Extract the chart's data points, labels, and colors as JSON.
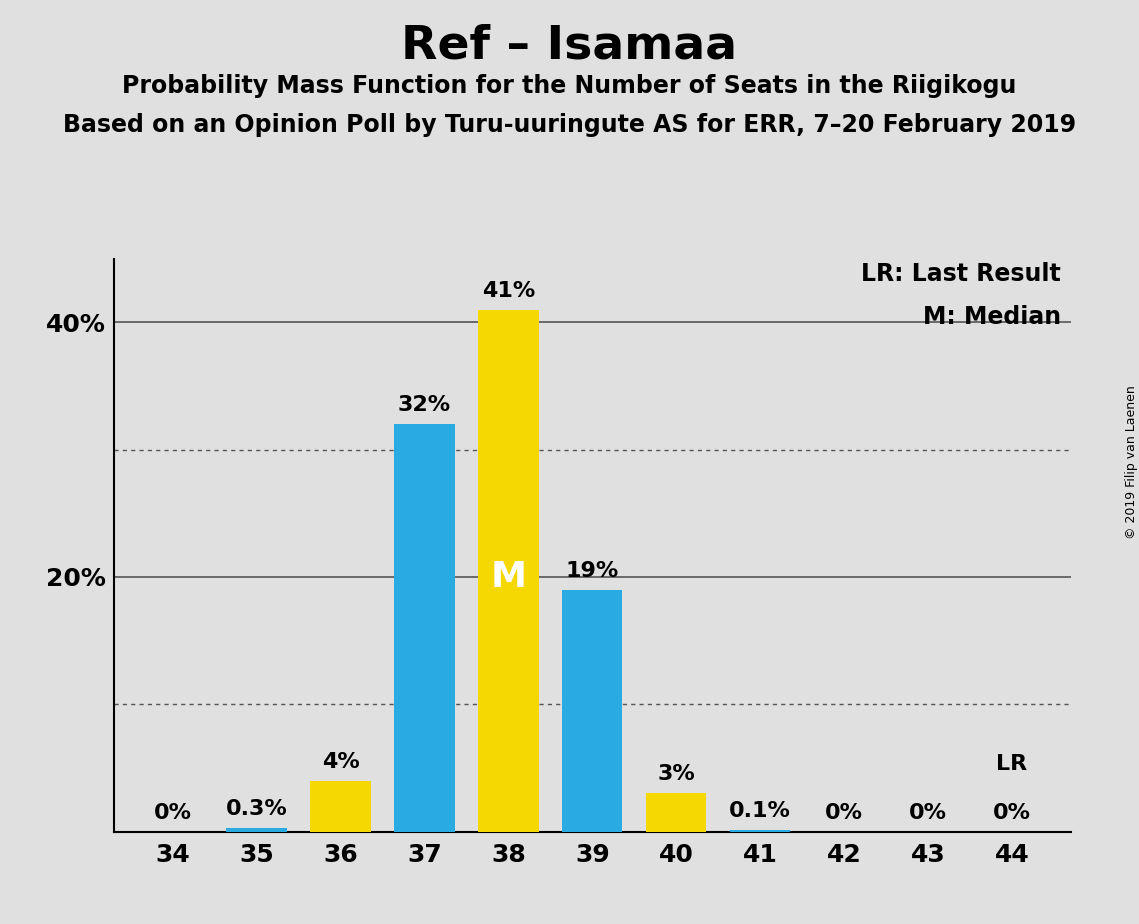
{
  "title": "Ref – Isamaa",
  "subtitle1": "Probability Mass Function for the Number of Seats in the Riigikogu",
  "subtitle2": "Based on an Opinion Poll by Turu-uuringute AS for ERR, 7–20 February 2019",
  "copyright": "© 2019 Filip van Laenen",
  "seats": [
    34,
    35,
    36,
    37,
    38,
    39,
    40,
    41,
    42,
    43,
    44
  ],
  "probabilities": [
    0.0,
    0.3,
    4.0,
    32.0,
    41.0,
    19.0,
    3.0,
    0.1,
    0.0,
    0.0,
    0.0
  ],
  "bar_colors": [
    "#F5D800",
    "#29ABE2",
    "#F5D800",
    "#29ABE2",
    "#F5D800",
    "#29ABE2",
    "#F5D800",
    "#29ABE2",
    "#F5D800",
    "#29ABE2",
    "#F5D800"
  ],
  "label_texts": [
    "0%",
    "0.3%",
    "4%",
    "32%",
    "41%",
    "19%",
    "3%",
    "0.1%",
    "0%",
    "0%",
    "0%"
  ],
  "median_seat": 38,
  "lr_seat": 44,
  "lr_label": "LR",
  "median_label": "M",
  "ylim": [
    0,
    45
  ],
  "ytick_positions": [
    10,
    20,
    30,
    40
  ],
  "ytick_labels": [
    "",
    "20%",
    "",
    "40%"
  ],
  "solid_gridlines": [
    20,
    40
  ],
  "dotted_gridlines": [
    10,
    30
  ],
  "background_color": "#E0E0E0",
  "legend_lr": "LR: Last Result",
  "legend_m": "M: Median",
  "title_fontsize": 34,
  "subtitle_fontsize": 17,
  "label_fontsize": 16,
  "axis_tick_fontsize": 18,
  "legend_fontsize": 17,
  "copyright_fontsize": 9
}
